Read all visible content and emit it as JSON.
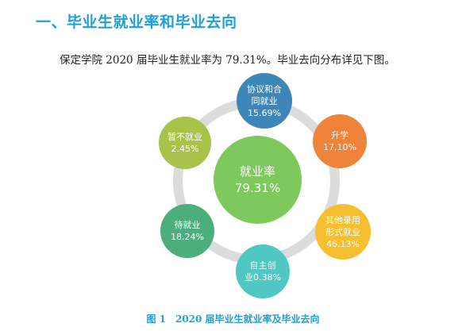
{
  "heading": "一、毕业生就业率和毕业去向",
  "intro": "保定学院 2020 届毕业生就业率为 79.31%。毕业去向分布详见下图。",
  "diagram": {
    "center": {
      "label": "就业率",
      "value": "79.31%",
      "color": "#7dc95e"
    },
    "nodes": [
      {
        "lines": [
          "协议和合",
          "同就业"
        ],
        "value": "15.69%",
        "color": "#3d86b8"
      },
      {
        "lines": [
          "升学"
        ],
        "value": "17.10%",
        "color": "#f0833a"
      },
      {
        "lines": [
          "其他录用",
          "形式就业"
        ],
        "value": "46.13%",
        "color": "#f5bf2f"
      },
      {
        "lines": [
          "自主创",
          "业"
        ],
        "value": "0.38%",
        "color": "#4fc7c2"
      },
      {
        "lines": [
          "待就业"
        ],
        "value": "18.24%",
        "color": "#4cae7c"
      },
      {
        "lines": [
          "暂不就业"
        ],
        "value": "2.45%",
        "color": "#a8c24a"
      }
    ]
  },
  "caption": "图 1　2020 届毕业生就业率及毕业去向"
}
